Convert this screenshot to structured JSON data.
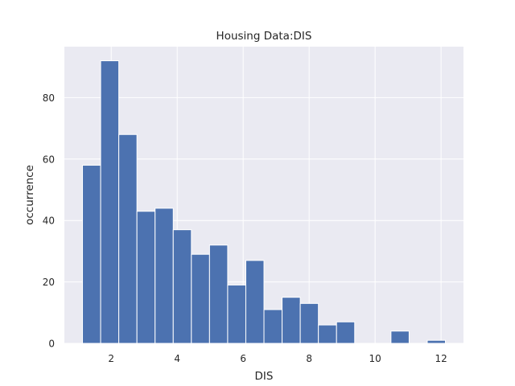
{
  "chart_data": {
    "type": "bar",
    "title": "Housing Data:DIS",
    "xlabel": "DIS",
    "ylabel": "occurrence",
    "bin_edges": [
      1.1296,
      1.6797,
      2.2298,
      2.7799,
      3.33,
      3.8801,
      4.4302,
      4.9803,
      5.5304,
      6.0805,
      6.6306,
      7.1807,
      7.7308,
      8.2809,
      8.831,
      9.3811,
      9.9312,
      10.4813,
      11.0314,
      11.5815,
      12.1316
    ],
    "values": [
      58,
      92,
      68,
      43,
      44,
      37,
      29,
      32,
      19,
      27,
      11,
      15,
      13,
      6,
      7,
      0,
      0,
      4,
      0,
      1
    ],
    "xlim": [
      0.58,
      12.68
    ],
    "ylim": [
      0,
      96.6
    ],
    "xticks": [
      2,
      4,
      6,
      8,
      10,
      12
    ],
    "yticks": [
      0,
      20,
      40,
      60,
      80
    ],
    "grid": true,
    "colors": {
      "bar": "#4c72b0",
      "plot_background": "#eaeaf2",
      "grid": "#ffffff",
      "text": "#262626"
    }
  }
}
